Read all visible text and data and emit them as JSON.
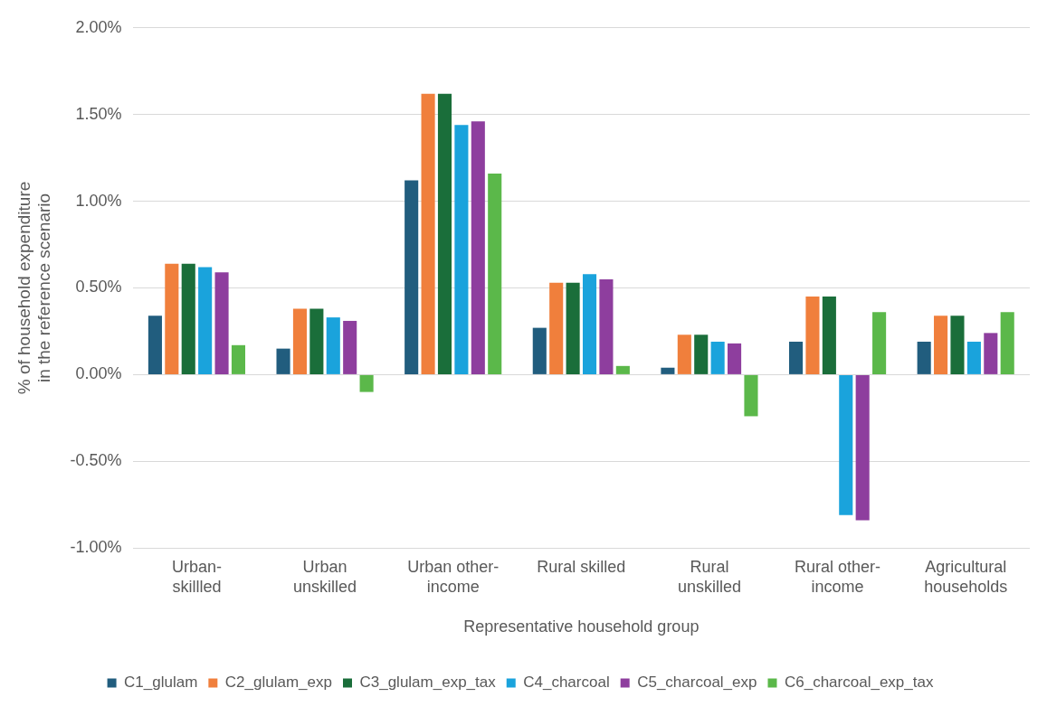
{
  "chart_data": {
    "type": "bar",
    "xlabel": "Representative household group",
    "ylabel": "% of household expenditure in the reference scenario",
    "categories": [
      "Urban-skillled",
      "Urban unskilled",
      "Urban other-income",
      "Rural skilled",
      "Rural unskilled",
      "Rural other-income",
      "Agricultural households"
    ],
    "series": [
      {
        "name": "C1_glulam",
        "color": "#215d7e",
        "values": [
          0.34,
          0.15,
          1.12,
          0.27,
          0.04,
          0.19,
          0.19
        ]
      },
      {
        "name": "C2_glulam_exp",
        "color": "#f07f3c",
        "values": [
          0.64,
          0.38,
          1.62,
          0.53,
          0.23,
          0.45,
          0.34
        ]
      },
      {
        "name": "C3_glulam_exp_tax",
        "color": "#1a6e3a",
        "values": [
          0.64,
          0.38,
          1.62,
          0.53,
          0.23,
          0.45,
          0.34
        ]
      },
      {
        "name": "C4_charcoal",
        "color": "#1aa3dc",
        "values": [
          0.62,
          0.33,
          1.44,
          0.58,
          0.19,
          -0.81,
          0.19
        ]
      },
      {
        "name": "C5_charcoal_exp",
        "color": "#8e3e9e",
        "values": [
          0.59,
          0.31,
          1.46,
          0.55,
          0.18,
          -0.84,
          0.24
        ]
      },
      {
        "name": "C6_charcoal_exp_tax",
        "color": "#5bb84a",
        "values": [
          0.17,
          -0.1,
          1.16,
          0.05,
          -0.24,
          0.36,
          0.36
        ]
      }
    ],
    "ylim": [
      -1,
      2
    ],
    "yticks": [
      {
        "value": -1,
        "label": "-1.00%"
      },
      {
        "value": -0.5,
        "label": "-0.50%"
      },
      {
        "value": 0,
        "label": "0.00%"
      },
      {
        "value": 0.5,
        "label": "0.50%"
      },
      {
        "value": 1,
        "label": "1.00%"
      },
      {
        "value": 1.5,
        "label": "1.50%"
      },
      {
        "value": 2,
        "label": "2.00%"
      }
    ],
    "grid": "y",
    "legend": "bottom"
  }
}
